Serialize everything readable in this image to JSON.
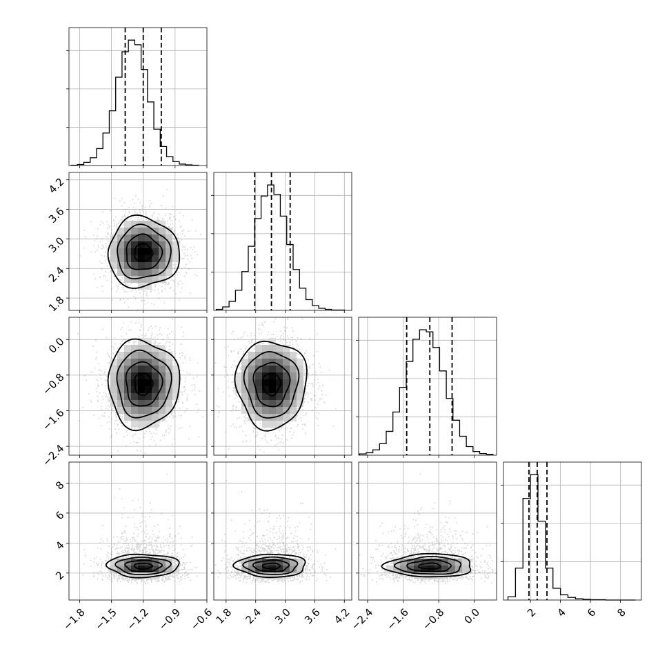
{
  "chart_data": {
    "type": "corner",
    "grid": true,
    "axis_labels": [
      "",
      "",
      "",
      ""
    ],
    "parameters": [
      {
        "range": [
          -1.9,
          -0.6
        ],
        "ticks": [
          -1.8,
          -1.5,
          -1.2,
          -0.9,
          -0.6
        ],
        "tick_labels": [
          "−1.8",
          "−1.5",
          "−1.2",
          "−0.9",
          "−0.6"
        ],
        "quantiles": [
          -1.37,
          -1.2,
          -1.03
        ],
        "histogram": {
          "bin_edges": [
            -1.88,
            -1.82,
            -1.76,
            -1.7,
            -1.64,
            -1.58,
            -1.52,
            -1.46,
            -1.4,
            -1.34,
            -1.28,
            -1.22,
            -1.16,
            -1.1,
            -1.04,
            -0.98,
            -0.92,
            -0.86,
            -0.8,
            -0.74,
            -0.68
          ],
          "counts": [
            1,
            3,
            9,
            22,
            48,
            92,
            155,
            250,
            322,
            355,
            342,
            272,
            180,
            103,
            54,
            25,
            11,
            4,
            2,
            1
          ]
        }
      },
      {
        "range": [
          1.55,
          4.35
        ],
        "ticks": [
          1.8,
          2.4,
          3.0,
          3.6,
          4.2
        ],
        "tick_labels": [
          "1.8",
          "2.4",
          "3.0",
          "3.6",
          "4.2"
        ],
        "quantiles": [
          2.38,
          2.72,
          3.1
        ],
        "histogram": {
          "bin_edges": [
            1.6,
            1.73,
            1.86,
            1.99,
            2.12,
            2.25,
            2.38,
            2.51,
            2.64,
            2.77,
            2.9,
            3.03,
            3.16,
            3.29,
            3.42,
            3.55,
            3.68,
            3.81,
            3.94,
            4.07,
            4.2
          ],
          "counts": [
            3,
            10,
            26,
            58,
            112,
            185,
            265,
            330,
            362,
            335,
            272,
            190,
            118,
            64,
            31,
            14,
            6,
            3,
            1,
            1
          ]
        }
      },
      {
        "range": [
          -2.6,
          0.5
        ],
        "ticks": [
          -2.4,
          -1.6,
          -0.8,
          0.0
        ],
        "tick_labels": [
          "−2.4",
          "−1.6",
          "−0.8",
          "0.0"
        ],
        "quantiles": [
          -1.52,
          -1.0,
          -0.5
        ],
        "histogram": {
          "bin_edges": [
            -2.58,
            -2.43,
            -2.28,
            -2.13,
            -1.98,
            -1.83,
            -1.68,
            -1.53,
            -1.38,
            -1.23,
            -1.08,
            -0.93,
            -0.78,
            -0.63,
            -0.48,
            -0.33,
            -0.18,
            -0.03,
            0.12,
            0.27,
            0.42
          ],
          "counts": [
            3,
            6,
            13,
            28,
            58,
            105,
            165,
            228,
            282,
            305,
            300,
            262,
            205,
            138,
            85,
            46,
            21,
            9,
            4,
            2
          ]
        }
      },
      {
        "range": [
          0.2,
          9.4
        ],
        "ticks": [
          2,
          4,
          6,
          8
        ],
        "tick_labels": [
          "2",
          "4",
          "6",
          "8"
        ],
        "quantiles": [
          1.9,
          2.45,
          3.1
        ],
        "histogram": {
          "bin_edges": [
            0.5,
            1.0,
            1.5,
            2.0,
            2.5,
            3.0,
            3.5,
            4.0,
            4.5,
            5.0,
            5.5,
            6.0,
            6.5,
            7.0,
            7.5,
            8.0,
            8.5,
            9.0
          ],
          "counts": [
            10,
            98,
            312,
            385,
            242,
            98,
            36,
            16,
            8,
            4,
            2,
            1,
            1,
            0,
            0,
            0,
            0
          ]
        }
      }
    ],
    "joint_distribution": {
      "means": [
        -1.2,
        2.72,
        -1.0,
        2.45
      ],
      "sigmas": [
        0.16,
        0.34,
        0.47,
        0.62
      ],
      "contour_levels": [
        "0.5 sigma",
        "1 sigma",
        "1.5 sigma",
        "2 sigma"
      ],
      "point_color": "#888888",
      "density_colormap": [
        "#ffffff",
        "#000000"
      ]
    }
  }
}
